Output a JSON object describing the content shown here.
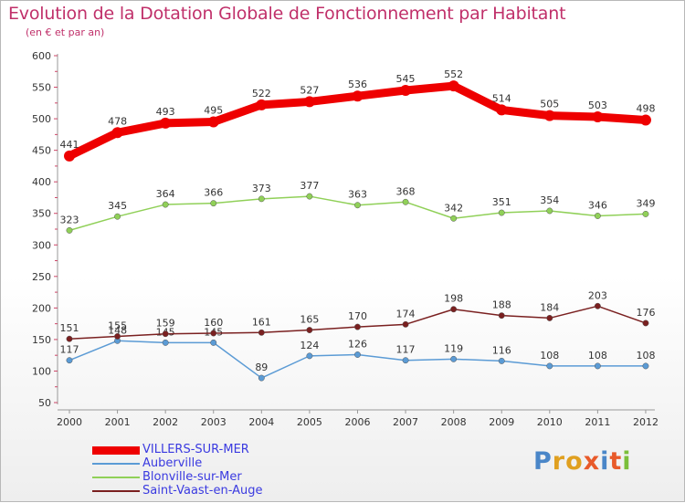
{
  "title": "Evolution de la Dotation Globale de Fonctionnement par Habitant",
  "subtitle": "(en € et par an)",
  "logo_text": "Proxiti",
  "chart_data": {
    "type": "line",
    "title": "Evolution de la Dotation Globale de Fonctionnement par Habitant",
    "ylabel": "(en € et par an)",
    "xlabel": "",
    "ylim": [
      50,
      600
    ],
    "yticks": [
      50,
      100,
      150,
      200,
      250,
      300,
      350,
      400,
      450,
      500,
      550,
      600
    ],
    "x": [
      "2000",
      "2001",
      "2002",
      "2003",
      "2004",
      "2005",
      "2006",
      "2007",
      "2008",
      "2009",
      "2010",
      "2011",
      "2012"
    ],
    "grid": false,
    "legend_position": "bottom-left",
    "series": [
      {
        "name": "VILLERS-SUR-MER",
        "color": "#ee0000",
        "values": [
          441,
          478,
          493,
          495,
          522,
          527,
          536,
          545,
          552,
          514,
          505,
          503,
          498
        ]
      },
      {
        "name": "Auberville",
        "color": "#5b9bd5",
        "values": [
          117,
          148,
          145,
          145,
          89,
          124,
          126,
          117,
          119,
          116,
          108,
          108,
          108
        ]
      },
      {
        "name": "Blonville-sur-Mer",
        "color": "#90d058",
        "values": [
          323,
          345,
          364,
          366,
          373,
          377,
          363,
          368,
          342,
          351,
          354,
          346,
          349
        ]
      },
      {
        "name": "Saint-Vaast-en-Auge",
        "color": "#7a2020",
        "values": [
          151,
          155,
          159,
          160,
          161,
          165,
          170,
          174,
          198,
          188,
          184,
          203,
          176
        ]
      }
    ]
  }
}
